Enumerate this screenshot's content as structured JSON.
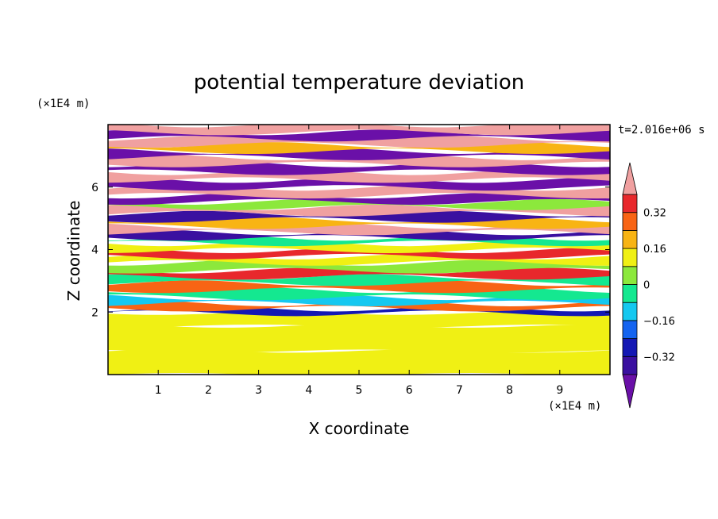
{
  "chart_data": {
    "type": "heatmap",
    "title": "potential temperature deviation",
    "xlabel": "X coordinate",
    "ylabel": "Z coordinate",
    "x_unit": "(×1E4 m)",
    "y_unit": "(×1E4 m)",
    "time_label": "t=2.016e+06 s",
    "xlim": [
      0,
      10
    ],
    "ylim": [
      0,
      8
    ],
    "x_ticks": [
      "1",
      "2",
      "3",
      "4",
      "5",
      "6",
      "7",
      "8",
      "9"
    ],
    "y_ticks": [
      "2",
      "4",
      "6"
    ],
    "colorbar": {
      "levels": [
        -0.48,
        -0.4,
        -0.32,
        -0.24,
        -0.16,
        -0.08,
        0,
        0.08,
        0.16,
        0.24,
        0.32,
        0.4,
        0.48
      ],
      "labels": [
        "0.32",
        "0.16",
        "0",
        "−0.16",
        "−0.32"
      ],
      "colors": [
        "#6a10a8",
        "#3a10a0",
        "#1418b4",
        "#1464f0",
        "#14c8f0",
        "#14e890",
        "#8ce83c",
        "#f0f014",
        "#f8b414",
        "#f86414",
        "#e8282c",
        "#f0a0a0"
      ],
      "extend": "both"
    },
    "bands": [
      {
        "z": 0.3,
        "value": 0.0
      },
      {
        "z": 1.2,
        "value": 0.02
      },
      {
        "z": 1.9,
        "value": 0.05
      },
      {
        "z": 2.02,
        "value": -0.38
      },
      {
        "z": 2.2,
        "value": 0.18
      },
      {
        "z": 2.35,
        "value": -0.2
      },
      {
        "z": 2.6,
        "value": -0.1
      },
      {
        "z": 2.8,
        "value": 0.22
      },
      {
        "z": 3.05,
        "value": -0.12
      },
      {
        "z": 3.2,
        "value": 0.24
      },
      {
        "z": 3.45,
        "value": -0.08
      },
      {
        "z": 3.7,
        "value": 0.06
      },
      {
        "z": 3.85,
        "value": 0.3
      },
      {
        "z": 4.1,
        "value": 0.04
      },
      {
        "z": 4.3,
        "value": -0.14
      },
      {
        "z": 4.45,
        "value": -0.42
      },
      {
        "z": 4.65,
        "value": 0.35
      },
      {
        "z": 4.85,
        "value": 0.1
      },
      {
        "z": 5.05,
        "value": -0.42
      },
      {
        "z": 5.25,
        "value": 0.5
      },
      {
        "z": 5.45,
        "value": -0.06
      },
      {
        "z": 5.6,
        "value": -0.5
      },
      {
        "z": 5.85,
        "value": 0.5
      },
      {
        "z": 6.1,
        "value": -0.5
      },
      {
        "z": 6.35,
        "value": 0.5
      },
      {
        "z": 6.6,
        "value": -0.5
      },
      {
        "z": 6.85,
        "value": 0.5
      },
      {
        "z": 7.05,
        "value": -0.5
      },
      {
        "z": 7.25,
        "value": 0.12
      },
      {
        "z": 7.45,
        "value": 0.5
      },
      {
        "z": 7.65,
        "value": -0.5
      },
      {
        "z": 7.85,
        "value": 0.5
      }
    ]
  }
}
